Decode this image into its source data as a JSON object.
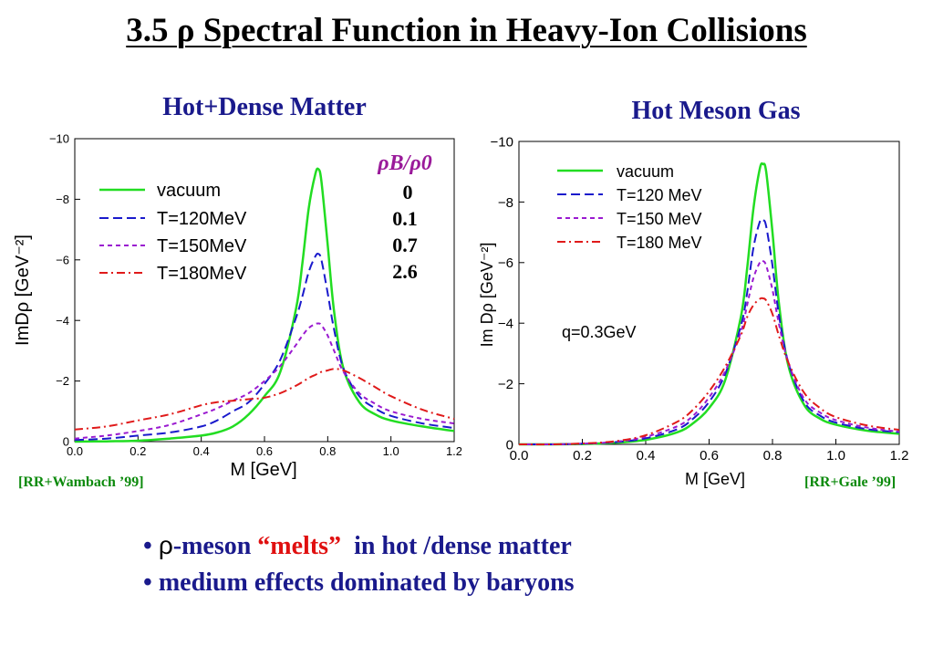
{
  "slide": {
    "title": "3.5 ρ Spectral Function in Heavy-Ion Collisions",
    "left_heading": "Hot+Dense Matter",
    "right_heading": "Hot Meson Gas",
    "left_citation": "[RR+Wambach ’99]",
    "right_citation": "[RR+Gale ’99]",
    "bullet1": {
      "marker": "•",
      "rho": "ρ",
      "pre": "-meson ",
      "quoted": "“melts”",
      "post": "  in hot /dense matter"
    },
    "bullet2": {
      "marker": "•",
      "text": "medium effects dominated by baryons"
    }
  },
  "chart_data": [
    {
      "type": "line",
      "xlabel": "M [GeV]",
      "ylabel": "ImDρ [GeV⁻²]",
      "xlim": [
        0.0,
        1.2
      ],
      "ylim": [
        0,
        -10
      ],
      "x_ticks": [
        "0.0",
        "0.2",
        "0.4",
        "0.6",
        "0.8",
        "1.0",
        "1.2"
      ],
      "y_ticks": [
        "0",
        "−2",
        "−4",
        "−6",
        "−8",
        "−10"
      ],
      "legend_position": "top-left",
      "legend": [
        "vacuum",
        "T=120MeV",
        "T=150MeV",
        "T=180MeV"
      ],
      "density_header": "ρB/ρ0",
      "density_values": [
        "0",
        "0.1",
        "0.7",
        "2.6"
      ],
      "x": [
        0.0,
        0.1,
        0.2,
        0.3,
        0.4,
        0.45,
        0.5,
        0.55,
        0.6,
        0.65,
        0.7,
        0.72,
        0.74,
        0.76,
        0.77,
        0.78,
        0.8,
        0.82,
        0.85,
        0.9,
        0.95,
        1.0,
        1.1,
        1.2
      ],
      "series": [
        {
          "name": "vacuum",
          "color": "#22dd22",
          "dash": "solid",
          "values": [
            0,
            -0.01,
            -0.03,
            -0.1,
            -0.2,
            -0.3,
            -0.5,
            -0.9,
            -1.5,
            -2.3,
            -4.4,
            -5.9,
            -7.7,
            -8.8,
            -9.0,
            -8.6,
            -6.5,
            -4.3,
            -2.4,
            -1.3,
            -0.9,
            -0.7,
            -0.5,
            -0.35
          ]
        },
        {
          "name": "T=120MeV",
          "color": "#1a1acc",
          "dash": "long",
          "values": [
            -0.05,
            -0.1,
            -0.2,
            -0.3,
            -0.5,
            -0.7,
            -1.0,
            -1.3,
            -1.9,
            -2.7,
            -4.1,
            -4.8,
            -5.6,
            -6.1,
            -6.2,
            -6.0,
            -4.9,
            -3.7,
            -2.4,
            -1.5,
            -1.1,
            -0.85,
            -0.6,
            -0.45
          ]
        },
        {
          "name": "T=150MeV",
          "color": "#9a1ad0",
          "dash": "short",
          "values": [
            -0.1,
            -0.2,
            -0.35,
            -0.55,
            -0.9,
            -1.1,
            -1.35,
            -1.6,
            -2.0,
            -2.5,
            -3.2,
            -3.5,
            -3.75,
            -3.88,
            -3.9,
            -3.85,
            -3.5,
            -3.0,
            -2.3,
            -1.6,
            -1.25,
            -1.0,
            -0.75,
            -0.6
          ]
        },
        {
          "name": "T=180MeV",
          "color": "#e01a1a",
          "dash": "dashdot",
          "values": [
            -0.4,
            -0.5,
            -0.7,
            -0.9,
            -1.2,
            -1.3,
            -1.35,
            -1.4,
            -1.45,
            -1.6,
            -1.85,
            -1.97,
            -2.1,
            -2.2,
            -2.25,
            -2.3,
            -2.35,
            -2.4,
            -2.35,
            -2.1,
            -1.8,
            -1.5,
            -1.05,
            -0.75
          ]
        }
      ]
    },
    {
      "type": "line",
      "xlabel": "M [GeV]",
      "ylabel": "Im Dρ [GeV⁻²]",
      "xlim": [
        0.0,
        1.2
      ],
      "ylim": [
        0,
        -10
      ],
      "x_ticks": [
        "0.0",
        "0.2",
        "0.4",
        "0.6",
        "0.8",
        "1.0",
        "1.2"
      ],
      "y_ticks": [
        "0",
        "−2",
        "−4",
        "−6",
        "−8",
        "−10"
      ],
      "legend_position": "top-left",
      "legend": [
        "vacuum",
        "T=120 MeV",
        "T=150 MeV",
        "T=180 MeV"
      ],
      "annotation": "q=0.3GeV",
      "x": [
        0.0,
        0.1,
        0.2,
        0.3,
        0.4,
        0.5,
        0.55,
        0.6,
        0.65,
        0.7,
        0.72,
        0.74,
        0.76,
        0.77,
        0.78,
        0.8,
        0.82,
        0.85,
        0.9,
        0.95,
        1.0,
        1.1,
        1.2
      ],
      "series": [
        {
          "name": "vacuum",
          "color": "#22dd22",
          "dash": "solid",
          "values": [
            0,
            0,
            -0.01,
            -0.05,
            -0.15,
            -0.4,
            -0.7,
            -1.2,
            -2.1,
            -4.2,
            -5.8,
            -7.8,
            -9.1,
            -9.25,
            -9.0,
            -7.0,
            -4.7,
            -2.6,
            -1.3,
            -0.85,
            -0.65,
            -0.45,
            -0.35
          ]
        },
        {
          "name": "T=120 MeV",
          "color": "#1a1acc",
          "dash": "long",
          "values": [
            0,
            0,
            -0.02,
            -0.07,
            -0.2,
            -0.5,
            -0.85,
            -1.4,
            -2.3,
            -3.9,
            -5.0,
            -6.5,
            -7.35,
            -7.4,
            -7.2,
            -5.9,
            -4.3,
            -2.7,
            -1.4,
            -0.95,
            -0.72,
            -0.5,
            -0.4
          ]
        },
        {
          "name": "T=150 MeV",
          "color": "#9a1ad0",
          "dash": "short",
          "values": [
            0,
            0,
            -0.02,
            -0.08,
            -0.25,
            -0.6,
            -0.95,
            -1.55,
            -2.4,
            -3.7,
            -4.6,
            -5.5,
            -6.0,
            -6.05,
            -5.9,
            -5.1,
            -4.0,
            -2.7,
            -1.5,
            -1.05,
            -0.8,
            -0.55,
            -0.42
          ]
        },
        {
          "name": "T=180 MeV",
          "color": "#e01a1a",
          "dash": "dashdot",
          "values": [
            0,
            0,
            -0.03,
            -0.1,
            -0.3,
            -0.75,
            -1.15,
            -1.75,
            -2.55,
            -3.6,
            -4.2,
            -4.6,
            -4.8,
            -4.82,
            -4.75,
            -4.3,
            -3.6,
            -2.7,
            -1.7,
            -1.2,
            -0.9,
            -0.62,
            -0.48
          ]
        }
      ]
    }
  ]
}
